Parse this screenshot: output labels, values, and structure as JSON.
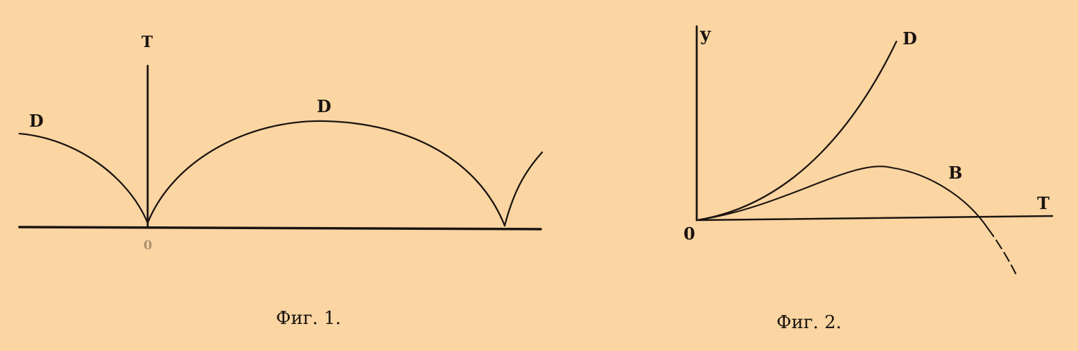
{
  "figure1": {
    "axis_label_vertical": "T",
    "curve_label_left": "D",
    "curve_label_arch": "D",
    "origin_label": "0",
    "caption": "Фиг. 1."
  },
  "figure2": {
    "axis_label_y": "y",
    "axis_label_x": "T",
    "origin_label": "0",
    "curve_label_upper": "D",
    "curve_label_lower": "B",
    "caption": "Фиг. 2."
  }
}
